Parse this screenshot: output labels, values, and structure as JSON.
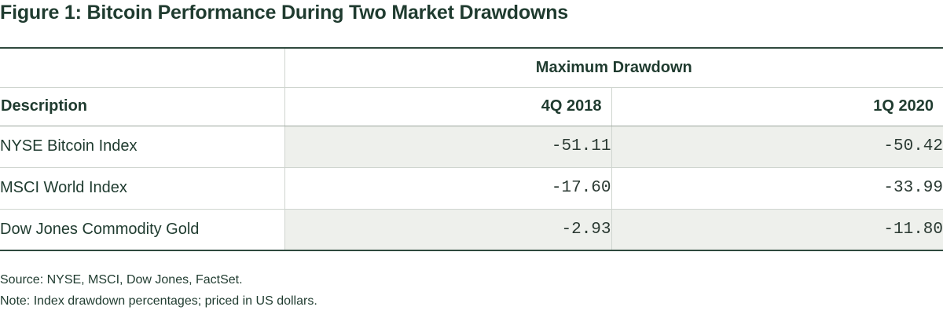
{
  "title": "Figure 1: Bitcoin Performance During Two Market Drawdowns",
  "table": {
    "group_header": "Maximum Drawdown",
    "columns": [
      "Description",
      "4Q 2018",
      "1Q 2020"
    ],
    "rows": [
      {
        "description": "NYSE Bitcoin Index",
        "q4_2018": "-51.11",
        "q1_2020": "-50.42"
      },
      {
        "description": "MSCI World Index",
        "q4_2018": "-17.60",
        "q1_2020": "-33.99"
      },
      {
        "description": "Dow Jones Commodity Gold",
        "q4_2018": "-2.93",
        "q1_2020": "-11.80"
      }
    ],
    "row_shading": "#eef0ec",
    "rule_color": "#2f4a3e",
    "text_color": "#1f3b2f"
  },
  "footnotes": {
    "source": "Source: NYSE, MSCI, Dow Jones, FactSet.",
    "note": "Note: Index drawdown percentages; priced in US dollars."
  }
}
